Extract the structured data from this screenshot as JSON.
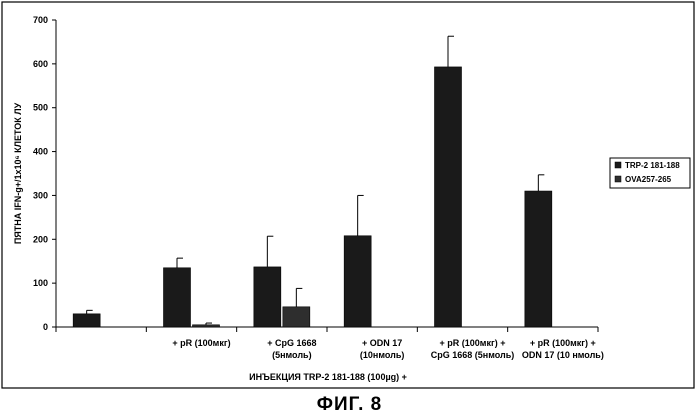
{
  "chart_data": {
    "type": "bar",
    "categories": [
      [
        ""
      ],
      [
        "+ pR (100мкг)"
      ],
      [
        "+ CpG 1668",
        "(5нмоль)"
      ],
      [
        "+ ODN 17",
        "(10нмоль)"
      ],
      [
        "+ pR (100мкг) +",
        "CpG 1668 (5нмоль)"
      ],
      [
        "+ pR (100мкг) +",
        "ODN 17 (10 нмоль)"
      ]
    ],
    "series": [
      {
        "name": "TRP-2 181-188",
        "values": [
          30,
          135,
          137,
          208,
          593,
          310
        ],
        "errors": [
          8,
          22,
          70,
          92,
          70,
          37
        ]
      },
      {
        "name": "OVA257-265",
        "values": [
          0,
          5,
          46,
          0,
          0,
          0
        ],
        "errors": [
          0,
          4,
          42,
          0,
          0,
          0
        ]
      }
    ],
    "yticks": [
      0,
      100,
      200,
      300,
      400,
      500,
      600,
      700
    ],
    "ylim": [
      0,
      700
    ],
    "ylabel": "ПЯТНА IFN-g+/1x10⁶ КЛЕТОК ЛУ",
    "xlabel": "ИНЪЕКЦИЯ TRP-2 181-188 (100µg) +",
    "legend_position": "right",
    "grid": false,
    "colors": {
      "TRP-2 181-188": "#1a1a1a",
      "OVA257-265": "#2e2e2e"
    }
  },
  "caption": "ФИГ. 8"
}
